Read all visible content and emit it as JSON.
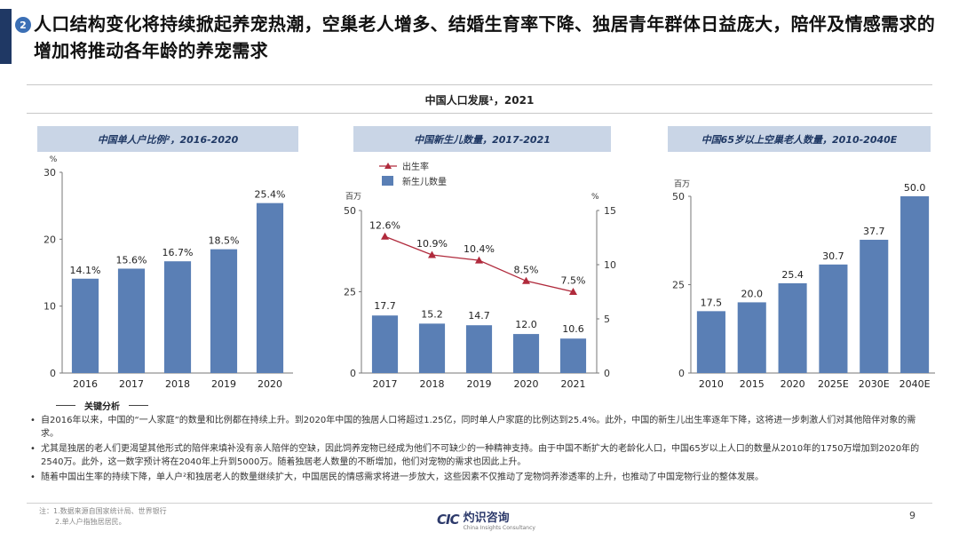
{
  "header": {
    "badge": "2",
    "headline": "人口结构变化将持续掀起养宠热潮，空巢老人增多、结婚生育率下降、独居青年群体日益庞大，陪伴及情感需求的增加将推动各年龄的养宠需求"
  },
  "super_title": "中国人口发展¹，2021",
  "colors": {
    "bar": "#5a7fb5",
    "line": "#b02a3c",
    "panel_bg": "#c9d5e6",
    "accent": "#1f3864"
  },
  "chart_data": [
    {
      "type": "bar",
      "title": "中国单人户比例²，2016-2020",
      "unit": "%",
      "categories": [
        "2016",
        "2017",
        "2018",
        "2019",
        "2020"
      ],
      "values": [
        14.1,
        15.6,
        16.7,
        18.5,
        25.4
      ],
      "labels": [
        "14.1%",
        "15.6%",
        "16.7%",
        "18.5%",
        "25.4%"
      ],
      "ylim": [
        0,
        30
      ],
      "yticks": [
        "0",
        "10",
        "20",
        "30"
      ]
    },
    {
      "type": "bar+line",
      "title": "中国新生儿数量，2017-2021",
      "unit_left": "百万",
      "unit_right": "%",
      "legend": {
        "line": "出生率",
        "bar": "新生儿数量"
      },
      "categories": [
        "2017",
        "2018",
        "2019",
        "2020",
        "2021"
      ],
      "bar_values": [
        17.7,
        15.2,
        14.7,
        12.0,
        10.6
      ],
      "bar_labels": [
        "17.7",
        "15.2",
        "14.7",
        "12.0",
        "10.6"
      ],
      "line_values": [
        12.6,
        10.9,
        10.4,
        8.5,
        7.5
      ],
      "line_labels": [
        "12.6%",
        "10.9%",
        "10.4%",
        "8.5%",
        "7.5%"
      ],
      "ylim_left": [
        0,
        50
      ],
      "yticks_left": [
        "0",
        "25",
        "50"
      ],
      "ylim_right": [
        0,
        15
      ],
      "yticks_right": [
        "0",
        "5",
        "10",
        "15"
      ]
    },
    {
      "type": "bar",
      "title": "中国65岁以上空巢老人数量，2010-2040E",
      "unit": "百万",
      "categories": [
        "2010",
        "2015",
        "2020",
        "2025E",
        "2030E",
        "2040E"
      ],
      "values": [
        17.5,
        20.0,
        25.4,
        30.7,
        37.7,
        50.0
      ],
      "labels": [
        "17.5",
        "20.0",
        "25.4",
        "30.7",
        "37.7",
        "50.0"
      ],
      "ylim": [
        0,
        50
      ],
      "yticks": [
        "0",
        "25",
        "50"
      ]
    }
  ],
  "analysis": {
    "label": "关键分析",
    "bullets": [
      "自2016年以来，中国的“一人家庭”的数量和比例都在持续上升。到2020年中国的独居人口将超过1.25亿，同时单人户家庭的比例达到25.4%。此外，中国的新生儿出生率逐年下降，这将进一步刺激人们对其他陪伴对象的需求。",
      "尤其是独居的老人们更渴望其他形式的陪伴来填补没有亲人陪伴的空缺，因此饲养宠物已经成为他们不可缺少的一种精神支持。由于中国不断扩大的老龄化人口，中国65岁以上人口的数量从2010年的1750万增加到2020年的2540万。此外，这一数字预计将在2040年上升到5000万。随着独居老人数量的不断增加，他们对宠物的需求也因此上升。",
      "随着中国出生率的持续下降，单人户²和独居老人的数量继续扩大，中国居民的情感需求将进一步放大，这些因素不仅推动了宠物饲养渗透率的上升，也推动了中国宠物行业的整体发展。"
    ]
  },
  "footnotes": [
    "注：1.数据来源自国家统计局、世界银行",
    "2.单人户指独居居民。"
  ],
  "logo": {
    "mark": "CIC",
    "name": "灼识咨询",
    "tagline": "China Insights Consultancy"
  },
  "page_number": "9"
}
